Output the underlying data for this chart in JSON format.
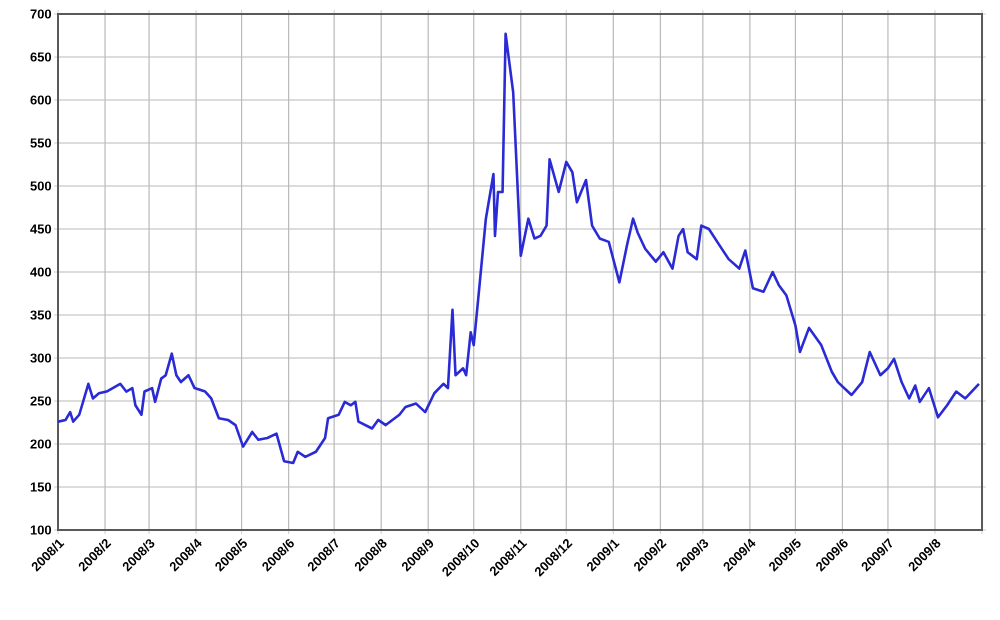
{
  "chart_data": {
    "type": "line",
    "x": [
      "2008-01-01",
      "2008-01-06",
      "2008-01-09",
      "2008-01-11",
      "2008-01-15",
      "2008-01-21",
      "2008-01-24",
      "2008-01-28",
      "2008-02-02",
      "2008-02-11",
      "2008-02-15",
      "2008-02-19",
      "2008-02-21",
      "2008-02-25",
      "2008-02-27",
      "2008-03-03",
      "2008-03-05",
      "2008-03-09",
      "2008-03-12",
      "2008-03-16",
      "2008-03-19",
      "2008-03-22",
      "2008-03-27",
      "2008-03-31",
      "2008-04-07",
      "2008-04-11",
      "2008-04-16",
      "2008-04-22",
      "2008-04-27",
      "2008-05-02",
      "2008-05-08",
      "2008-05-12",
      "2008-05-18",
      "2008-05-24",
      "2008-05-29",
      "2008-06-04",
      "2008-06-07",
      "2008-06-12",
      "2008-06-19",
      "2008-06-25",
      "2008-06-27",
      "2008-07-04",
      "2008-07-08",
      "2008-07-12",
      "2008-07-15",
      "2008-07-17",
      "2008-07-26",
      "2008-07-30",
      "2008-08-04",
      "2008-08-13",
      "2008-08-17",
      "2008-08-24",
      "2008-08-30",
      "2008-09-05",
      "2008-09-11",
      "2008-09-14",
      "2008-09-17",
      "2008-09-19",
      "2008-09-24",
      "2008-09-26",
      "2008-09-29",
      "2008-10-01",
      "2008-10-05",
      "2008-10-09",
      "2008-10-14",
      "2008-10-15",
      "2008-10-17",
      "2008-10-20",
      "2008-10-22",
      "2008-10-27",
      "2008-11-01",
      "2008-11-06",
      "2008-11-10",
      "2008-11-14",
      "2008-11-18",
      "2008-11-20",
      "2008-11-26",
      "2008-12-01",
      "2008-12-05",
      "2008-12-08",
      "2008-12-14",
      "2008-12-18",
      "2008-12-23",
      "2008-12-29",
      "2009-01-05",
      "2009-01-10",
      "2009-01-14",
      "2009-01-17",
      "2009-01-22",
      "2009-01-29",
      "2009-02-03",
      "2009-02-09",
      "2009-02-13",
      "2009-02-16",
      "2009-02-19",
      "2009-02-25",
      "2009-02-28",
      "2009-03-05",
      "2009-03-12",
      "2009-03-18",
      "2009-03-25",
      "2009-03-29",
      "2009-04-03",
      "2009-04-10",
      "2009-04-16",
      "2009-04-20",
      "2009-04-25",
      "2009-05-01",
      "2009-05-04",
      "2009-05-10",
      "2009-05-18",
      "2009-05-25",
      "2009-05-29",
      "2009-06-07",
      "2009-06-14",
      "2009-06-19",
      "2009-06-26",
      "2009-07-01",
      "2009-07-05",
      "2009-07-10",
      "2009-07-15",
      "2009-07-19",
      "2009-07-22",
      "2009-07-28",
      "2009-08-03",
      "2009-08-09",
      "2009-08-15",
      "2009-08-21",
      "2009-08-30"
    ],
    "series": [
      {
        "color": "#2b2bd6",
        "values": [
          226,
          228,
          237,
          226,
          234,
          270,
          253,
          259,
          261,
          270,
          261,
          265,
          245,
          234,
          261,
          265,
          249,
          276,
          280,
          305,
          280,
          272,
          280,
          265,
          261,
          253,
          230,
          228,
          222,
          197,
          214,
          205,
          207,
          212,
          180,
          178,
          191,
          185,
          191,
          207,
          230,
          234,
          249,
          245,
          249,
          226,
          218,
          228,
          222,
          234,
          243,
          247,
          237,
          259,
          270,
          265,
          356,
          280,
          288,
          280,
          330,
          315,
          388,
          462,
          514,
          442,
          493,
          493,
          677,
          609,
          419,
          462,
          439,
          442,
          454,
          531,
          493,
          528,
          516,
          481,
          507,
          454,
          439,
          435,
          388,
          431,
          462,
          446,
          427,
          412,
          423,
          404,
          442,
          450,
          423,
          415,
          454,
          450,
          431,
          415,
          404,
          425,
          381,
          377,
          400,
          385,
          373,
          338,
          307,
          335,
          315,
          284,
          272,
          257,
          272,
          307,
          280,
          288,
          299,
          272,
          253,
          268,
          249,
          265,
          231,
          245,
          261,
          253,
          270
        ]
      }
    ],
    "xlim": [
      "2008-01-01",
      "2009-09-01"
    ],
    "xticks": [
      {
        "value": "2008-01-01",
        "label": "2008/1"
      },
      {
        "value": "2008-02-01",
        "label": "2008/2"
      },
      {
        "value": "2008-03-01",
        "label": "2008/3"
      },
      {
        "value": "2008-04-01",
        "label": "2008/4"
      },
      {
        "value": "2008-05-01",
        "label": "2008/5"
      },
      {
        "value": "2008-06-01",
        "label": "2008/6"
      },
      {
        "value": "2008-07-01",
        "label": "2008/7"
      },
      {
        "value": "2008-08-01",
        "label": "2008/8"
      },
      {
        "value": "2008-09-01",
        "label": "2008/9"
      },
      {
        "value": "2008-10-01",
        "label": "2008/10"
      },
      {
        "value": "2008-11-01",
        "label": "2008/11"
      },
      {
        "value": "2008-12-01",
        "label": "2008/12"
      },
      {
        "value": "2009-01-01",
        "label": "2009/1"
      },
      {
        "value": "2009-02-01",
        "label": "2009/2"
      },
      {
        "value": "2009-03-01",
        "label": "2009/3"
      },
      {
        "value": "2009-04-01",
        "label": "2009/4"
      },
      {
        "value": "2009-05-01",
        "label": "2009/5"
      },
      {
        "value": "2009-06-01",
        "label": "2009/6"
      },
      {
        "value": "2009-07-01",
        "label": "2009/7"
      },
      {
        "value": "2009-08-01",
        "label": "2009/8"
      },
      {
        "value": "2009-09-01",
        "label": null
      }
    ],
    "ylim": [
      100,
      700
    ],
    "yticks": [
      100,
      150,
      200,
      250,
      300,
      350,
      400,
      450,
      500,
      550,
      600,
      650,
      700
    ],
    "grid": true,
    "marker": "none",
    "line_style": "solid"
  }
}
